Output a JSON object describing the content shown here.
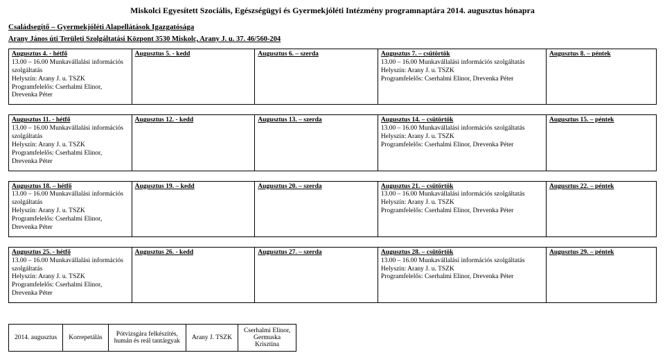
{
  "title": "Miskolci Egyesített Szociális, Egészségügyi és Gyermekjóléti Intézmény programnaptára 2014. augusztus hónapra",
  "sub1": "Családsegítő – Gyermekjóléti Alapellátások Igazgatósága",
  "sub2": "Arany János úti Területi Szolgáltatási Központ 3530 Miskolc, Arany J. u. 37. 46/560-204",
  "weeks": [
    {
      "mon": {
        "head": "Augusztus 4. - hétfő",
        "body": "13.00 – 16.00 Munkavállalási információs szolgáltatás\nHelyszín: Arany J. u. TSZK\nProgramfelelős: Cserhalmi Elinor, Drevenka Péter"
      },
      "tue": {
        "head": "Augusztus 5. - kedd",
        "body": ""
      },
      "wed": {
        "head": "Augusztus 6. – szerda",
        "body": ""
      },
      "thu": {
        "head": "Augusztus 7. – csütörtök",
        "body": "13.00 – 16.00 Munkavállalási információs szolgáltatás\nHelyszín: Arany J. u. TSZK\nProgramfelelős: Cserhalmi Elinor, Drevenka Péter"
      },
      "fri": {
        "head": "Augusztus 8. – péntek",
        "body": ""
      }
    },
    {
      "mon": {
        "head": "Augusztus 11. - hétfő",
        "body": "13.00 – 16.00 Munkavállalási információs szolgáltatás\nHelyszín: Arany J. u. TSZK\nProgramfelelős: Cserhalmi Elinor, Drevenka Péter"
      },
      "tue": {
        "head": "Augusztus 12. - kedd",
        "body": ""
      },
      "wed": {
        "head": "Augusztus 13. – szerda",
        "body": ""
      },
      "thu": {
        "head": "Augusztus 14. – csütörtök",
        "body": "13.00 – 16.00 Munkavállalási információs szolgáltatás\nHelyszín: Arany J. u. TSZK\nProgramfelelős: Cserhalmi Elinor, Drevenka Péter"
      },
      "fri": {
        "head": "Augusztus 15. – péntek",
        "body": ""
      }
    },
    {
      "mon": {
        "head": "Augusztus 18. – hétfő",
        "body": "13.00 – 16.00 Munkavállalási információs szolgáltatás\nHelyszín: Arany J. u. TSZK\nProgramfelelős: Cserhalmi Elinor, Drevenka Péter"
      },
      "tue": {
        "head": "Augusztus 19. – kedd",
        "body": ""
      },
      "wed": {
        "head": "Augusztus 20. – szerda",
        "body": ""
      },
      "thu": {
        "head": "Augusztus 21. – csütörtök",
        "body": "13.00 – 16.00 Munkavállalási információs szolgáltatás\nHelyszín: Arany J. u. TSZK\nProgramfelelős: Cserhalmi Elinor, Drevenka Péter"
      },
      "fri": {
        "head": "Augusztus 22. – péntek",
        "body": ""
      }
    },
    {
      "mon": {
        "head": "Augusztus 25. - hétfő",
        "body": "13.00 – 16.00 Munkavállalási információs szolgáltatás\nHelyszín: Arany J. u. TSZK\nProgramfelelős: Cserhalmi Elinor, Drevenka Péter"
      },
      "tue": {
        "head": "Augusztus 26. - kedd",
        "body": ""
      },
      "wed": {
        "head": "Augusztus 27. – szerda",
        "body": ""
      },
      "thu": {
        "head": "Augusztus 28. – csütörtök",
        "body": "13.00 – 16.00 Munkavállalási információs szolgáltatás\nHelyszín: Arany J. u. TSZK\nProgramfelelős: Cserhalmi Elinor, Drevenka Péter"
      },
      "fri": {
        "head": "Augusztus 29. – péntek",
        "body": ""
      }
    }
  ],
  "footer": {
    "c1": "2014. augusztus",
    "c2": "Korrepetálás",
    "c3": "Pótvizsgára felkészítés,\nhumán és reál tantárgyak",
    "c4": "Arany J. TSZK",
    "c5": "Cserhalmi Elinor,\nGermuska\nKrisztina"
  }
}
